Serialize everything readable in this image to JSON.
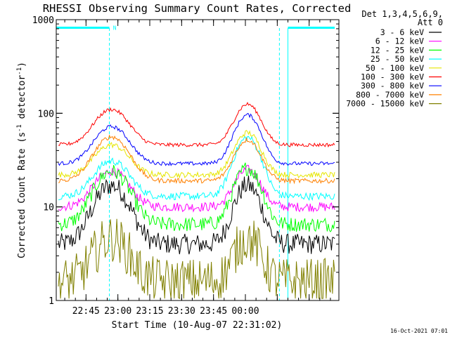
{
  "chart_data": {
    "type": "line",
    "title": "RHESSI Observing Summary Count Rates, Corrected",
    "xlabel": "Start Time (10-Aug-07 22:31:02)",
    "ylabel": "Corrected Count Rate (s",
    "ylabel_sup1": "-1",
    "ylabel_mid": " detector",
    "ylabel_sup2": "-1",
    "ylabel_end": ")",
    "yscale": "log",
    "ylim": [
      1,
      1000
    ],
    "y_ticks": [
      1,
      10,
      100,
      1000
    ],
    "y_tick_labels": [
      "1",
      "10",
      "100",
      "1000"
    ],
    "xlim_min": [
      0,
      133
    ],
    "x_ticks_min": [
      14,
      29,
      44,
      59,
      74,
      89,
      104,
      119
    ],
    "x_tick_labels": [
      "22:45",
      "23:00",
      "23:15",
      "23:30",
      "23:45",
      "00:00"
    ],
    "x_tick_label_min": [
      14,
      29,
      44,
      59,
      74,
      89
    ],
    "timestamp": "16-Oct-2021 07:01",
    "legend": {
      "placement": "right",
      "header": [
        "Det 1,3,4,5,6,9,",
        "Att 0"
      ]
    },
    "night_markers_min": [
      25,
      105
    ],
    "saa_markers_min": [
      0,
      109
    ],
    "annotations": [
      {
        "text": "N",
        "x_min": 27.5,
        "y": 820
      }
    ],
    "series": [
      {
        "name": "3 - 6 keV",
        "color": "#000000",
        "base": 4.0,
        "peak1": 17,
        "peak2": 17,
        "noise": 0.22
      },
      {
        "name": "6 - 12 keV",
        "color": "#ff00ff",
        "base": 10.0,
        "peak1": 24,
        "peak2": 25,
        "noise": 0.1
      },
      {
        "name": "12 - 25 keV",
        "color": "#00ff00",
        "base": 6.5,
        "peak1": 24,
        "peak2": 26,
        "noise": 0.16
      },
      {
        "name": "25 - 50 keV",
        "color": "#00ffff",
        "base": 13.0,
        "peak1": 31,
        "peak2": 55,
        "noise": 0.08
      },
      {
        "name": "50 - 100 keV",
        "color": "#e6e600",
        "base": 22.0,
        "peak1": 46,
        "peak2": 62,
        "noise": 0.06
      },
      {
        "name": "100 - 300 keV",
        "color": "#ff0000",
        "base": 46.0,
        "peak1": 110,
        "peak2": 125,
        "noise": 0.04
      },
      {
        "name": "300 - 800 keV",
        "color": "#0000ff",
        "base": 29.0,
        "peak1": 72,
        "peak2": 96,
        "noise": 0.04
      },
      {
        "name": "800 - 7000 keV",
        "color": "#ff8000",
        "base": 19.0,
        "peak1": 56,
        "peak2": 52,
        "noise": 0.05
      },
      {
        "name": "7000 - 15000 keV",
        "color": "#808000",
        "base": 1.6,
        "peak1": 4.6,
        "peak2": 4.6,
        "noise": 0.5
      }
    ]
  }
}
